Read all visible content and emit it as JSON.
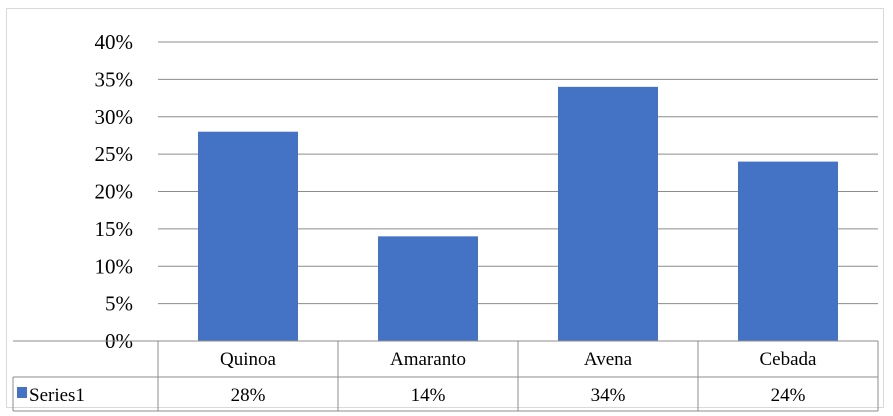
{
  "chart_data": {
    "type": "bar",
    "categories": [
      "Quinoa",
      "Amaranto",
      "Avena",
      "Cebada"
    ],
    "series": [
      {
        "name": "Series1",
        "values": [
          0.28,
          0.14,
          0.34,
          0.24
        ],
        "labels": [
          "28%",
          "14%",
          "34%",
          "24%"
        ],
        "color": "#4472C4"
      }
    ],
    "y_ticks": [
      "0%",
      "5%",
      "10%",
      "15%",
      "20%",
      "25%",
      "30%",
      "35%",
      "40%"
    ],
    "ylim": [
      0,
      0.4
    ],
    "grid": true,
    "data_table": true,
    "legend": "data-table"
  },
  "colors": {
    "bar": "#4472C4",
    "grid": "#8c8c8c",
    "table_border": "#8c8c8c",
    "frame_border": "#d9d9d9"
  }
}
